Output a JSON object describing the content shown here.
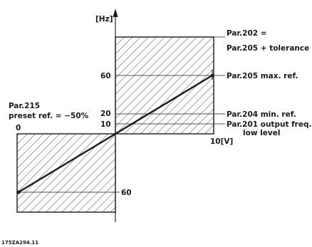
{
  "axes": {
    "y_unit": "[Hz]",
    "x_unit": "10[V]",
    "x_zero": "0"
  },
  "ticks": {
    "y_60": "60",
    "y_20": "20",
    "y_10": "10",
    "y_neg_60": "60"
  },
  "labels": {
    "par202_line1": "Par.202 =",
    "par202_line2": "Par.205 + tolerance",
    "par205": "Par.205  max. ref.",
    "par204": "Par.204  min. ref.",
    "par201_line1": "Par.201  output freq.",
    "par201_line2": "low level",
    "par215_line1": "Par.215",
    "par215_line2": "preset ref. = −50%"
  },
  "figure_code": "175ZA294.11"
}
